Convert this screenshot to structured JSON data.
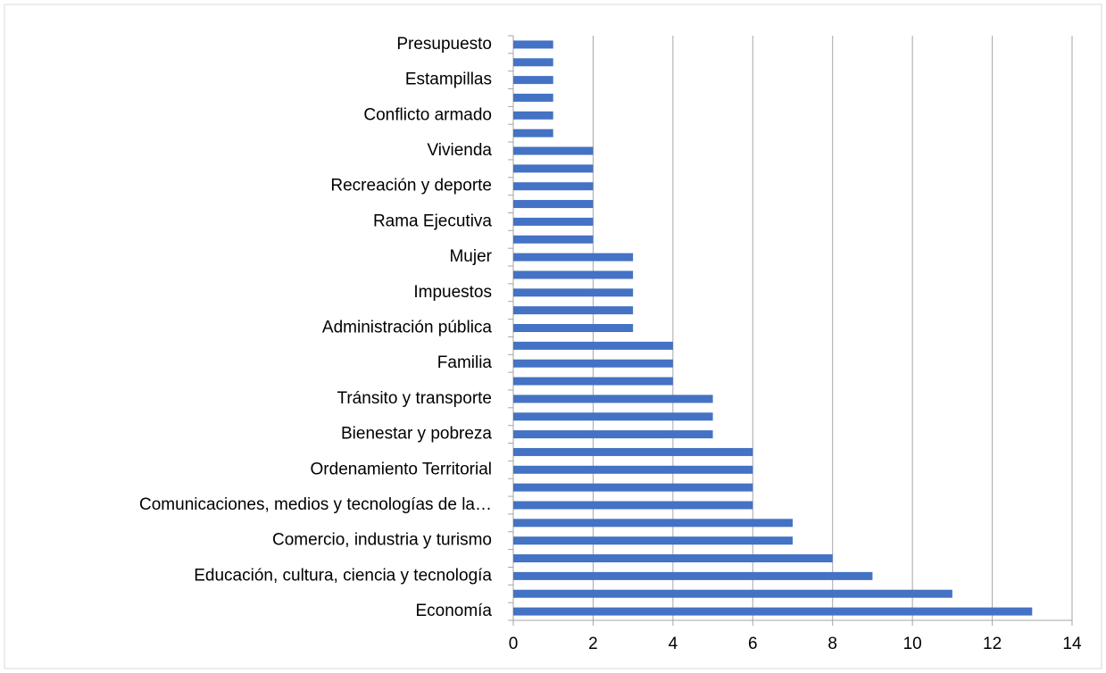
{
  "chart_data": {
    "type": "bar",
    "orientation": "horizontal",
    "categories": [
      "Economía",
      null,
      "Educación, cultura, ciencia y tecnología",
      null,
      "Comercio, industria y turismo",
      null,
      "Comunicaciones, medios y tecnologías de la…",
      null,
      "Ordenamiento Territorial",
      null,
      "Bienestar y pobreza",
      null,
      "Tránsito y transporte",
      null,
      "Familia",
      null,
      "Administración pública",
      null,
      "Impuestos",
      null,
      "Mujer",
      null,
      "Rama Ejecutiva",
      null,
      "Recreación y deporte",
      null,
      "Vivienda",
      null,
      "Conflicto armado",
      null,
      "Estampillas",
      null,
      "Presupuesto"
    ],
    "values": [
      13,
      11,
      9,
      8,
      7,
      7,
      6,
      6,
      6,
      6,
      5,
      5,
      5,
      4,
      4,
      4,
      3,
      3,
      3,
      3,
      3,
      2,
      2,
      2,
      2,
      2,
      2,
      1,
      1,
      1,
      1,
      1,
      1
    ],
    "color": "#4472c4",
    "xlim": [
      0,
      14
    ],
    "xticks": [
      0,
      2,
      4,
      6,
      8,
      10,
      12,
      14
    ],
    "grid": true
  }
}
